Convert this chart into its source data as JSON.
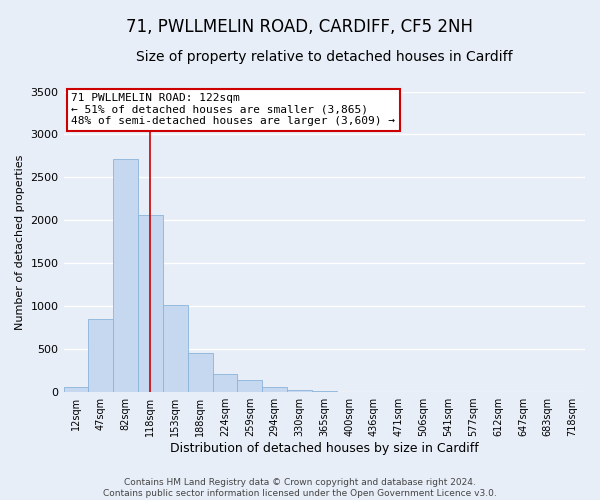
{
  "title": "71, PWLLMELIN ROAD, CARDIFF, CF5 2NH",
  "subtitle": "Size of property relative to detached houses in Cardiff",
  "xlabel": "Distribution of detached houses by size in Cardiff",
  "ylabel": "Number of detached properties",
  "footer_lines": [
    "Contains HM Land Registry data © Crown copyright and database right 2024.",
    "Contains public sector information licensed under the Open Government Licence v3.0."
  ],
  "bin_labels": [
    "12sqm",
    "47sqm",
    "82sqm",
    "118sqm",
    "153sqm",
    "188sqm",
    "224sqm",
    "259sqm",
    "294sqm",
    "330sqm",
    "365sqm",
    "400sqm",
    "436sqm",
    "471sqm",
    "506sqm",
    "541sqm",
    "577sqm",
    "612sqm",
    "647sqm",
    "683sqm",
    "718sqm"
  ],
  "bar_heights": [
    55,
    850,
    2720,
    2060,
    1010,
    455,
    215,
    145,
    55,
    25,
    15,
    5,
    0,
    0,
    0,
    0,
    0,
    0,
    0,
    0,
    0
  ],
  "bar_color": "#c5d8f0",
  "bar_edge_color": "#8ab4d8",
  "property_bin_index": 3,
  "vline_color": "#cc0000",
  "annotation_line1": "71 PWLLMELIN ROAD: 122sqm",
  "annotation_line2": "← 51% of detached houses are smaller (3,865)",
  "annotation_line3": "48% of semi-detached houses are larger (3,609) →",
  "annotation_box_facecolor": "#ffffff",
  "annotation_box_edgecolor": "#cc0000",
  "ylim": [
    0,
    3500
  ],
  "yticks": [
    0,
    500,
    1000,
    1500,
    2000,
    2500,
    3000,
    3500
  ],
  "background_color": "#e8eef8",
  "grid_color": "#ffffff",
  "title_fontsize": 12,
  "subtitle_fontsize": 10,
  "annot_fontsize": 8,
  "xlabel_fontsize": 9,
  "ylabel_fontsize": 8,
  "footer_fontsize": 6.5
}
